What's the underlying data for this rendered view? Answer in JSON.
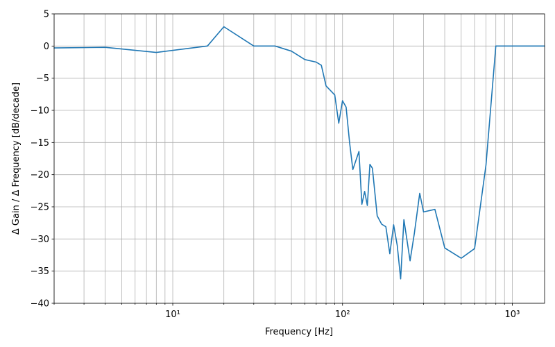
{
  "chart_data": {
    "type": "line",
    "title": "",
    "xlabel": "Frequency [Hz]",
    "ylabel": "Δ Gain / Δ Frequency [dB/decade]",
    "xscale": "log",
    "xlim": [
      2,
      1550
    ],
    "ylim": [
      -40,
      5
    ],
    "grid": "major and minor, x and y",
    "x_major_ticks": [
      10,
      100,
      1000
    ],
    "x_tick_labels": [
      "10¹",
      "10²",
      "10³"
    ],
    "y_ticks": [
      5,
      0,
      -5,
      -10,
      -15,
      -20,
      -25,
      -30,
      -35,
      -40
    ],
    "y_tick_labels": [
      "5",
      "0",
      "−5",
      "−10",
      "−15",
      "−20",
      "−25",
      "−30",
      "−35",
      "−40"
    ],
    "line_color": "#1f77b4",
    "x": [
      2,
      4,
      8,
      16,
      20,
      30,
      40,
      50,
      60,
      70,
      75,
      80,
      90,
      95,
      100,
      105,
      110,
      115,
      125,
      130,
      135,
      140,
      145,
      150,
      160,
      170,
      180,
      190,
      200,
      210,
      220,
      230,
      250,
      265,
      285,
      300,
      350,
      400,
      500,
      600,
      700,
      800,
      1550
    ],
    "y": [
      -0.3,
      -0.2,
      -1.0,
      0.0,
      3.0,
      0.0,
      0.0,
      -0.8,
      -2.1,
      -2.5,
      -3.0,
      -6.2,
      -7.6,
      -12.0,
      -8.5,
      -9.5,
      -15.0,
      -19.2,
      -16.4,
      -24.6,
      -22.6,
      -24.8,
      -18.4,
      -19.0,
      -26.4,
      -27.7,
      -28.1,
      -32.3,
      -27.8,
      -31.0,
      -36.2,
      -27.0,
      -33.4,
      -29.1,
      -22.9,
      -25.8,
      -25.4,
      -31.4,
      -33.0,
      -31.5,
      -18.5,
      0.0,
      0.0
    ]
  }
}
